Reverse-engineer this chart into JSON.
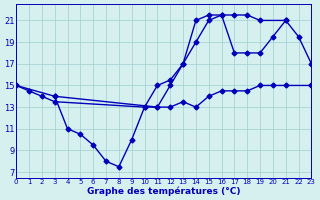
{
  "title": "Graphe des températures (°C)",
  "background_color": "#d6f0f0",
  "grid_color": "#9ecfcf",
  "line_color": "#0000bb",
  "x_hours": [
    0,
    1,
    2,
    3,
    4,
    5,
    6,
    7,
    8,
    9,
    10,
    11,
    12,
    13,
    14,
    15,
    16,
    17,
    18,
    19,
    20,
    21,
    22,
    23
  ],
  "line1_x": [
    0,
    1,
    2,
    3,
    10,
    11,
    12,
    13,
    14,
    15,
    16,
    17,
    18,
    19,
    20,
    21,
    23
  ],
  "line1_y": [
    15,
    14.5,
    14,
    13.5,
    13,
    13,
    13,
    13.5,
    13,
    14,
    14.5,
    14.5,
    14.5,
    15,
    15,
    15,
    15
  ],
  "line2_x": [
    0,
    3,
    11,
    12,
    13,
    14,
    15,
    16,
    17,
    18,
    19,
    20,
    21
  ],
  "line2_y": [
    15,
    14,
    13,
    15,
    17,
    19,
    21,
    21.5,
    18,
    18,
    18,
    19.5,
    21
  ],
  "line3_x": [
    3,
    4,
    5,
    6,
    7,
    8,
    9,
    10,
    11,
    12,
    13,
    14,
    15,
    16,
    17,
    18,
    19,
    21,
    22,
    23
  ],
  "line3_y": [
    14,
    11,
    10.5,
    9.5,
    8,
    7.5,
    10,
    13,
    15,
    15.5,
    17,
    21,
    21.5,
    21.5,
    21.5,
    21.5,
    21,
    21,
    19.5,
    17
  ],
  "line4_x": [
    23
  ],
  "line4_y": [
    15
  ],
  "ylim": [
    6.5,
    22.5
  ],
  "yticks": [
    7,
    9,
    11,
    13,
    15,
    17,
    19,
    21
  ],
  "xlim": [
    0,
    23
  ],
  "marker_size": 2.5
}
